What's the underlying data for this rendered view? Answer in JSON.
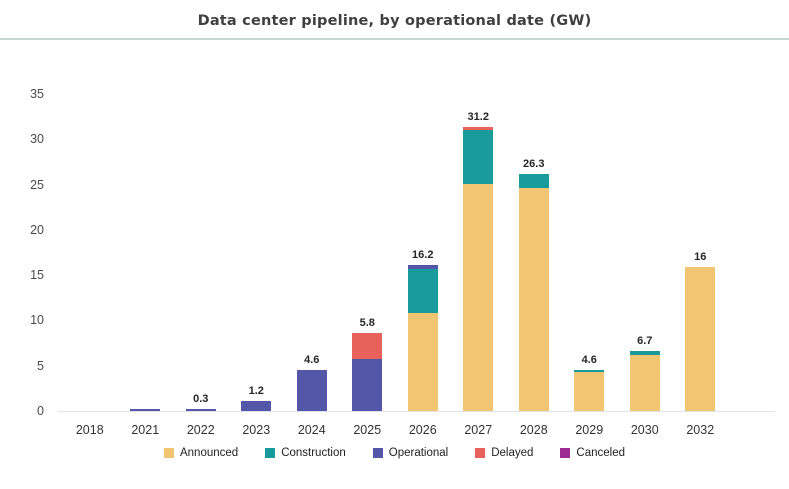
{
  "title": "Data center pipeline, by operational date (GW)",
  "colors": {
    "announced": "#f2c572",
    "construction": "#1a9b9b",
    "operational": "#5457a8",
    "delayed": "#e8625c",
    "canceled": "#9e2b91",
    "title_text": "#404040",
    "axis_text": "#4a4a4a",
    "axis_line": "#dfe3e5",
    "title_rule": "#c5d8d1"
  },
  "chart_data": {
    "type": "bar",
    "stacked": true,
    "title": "Data center pipeline, by operational date (GW)",
    "xlabel": "",
    "ylabel": "",
    "ylim": [
      0,
      35
    ],
    "yticks": [
      0,
      5,
      10,
      15,
      20,
      25,
      30,
      35
    ],
    "grid": false,
    "legend_position": "bottom",
    "categories": [
      "2018",
      "2021",
      "2022",
      "2023",
      "2024",
      "2025",
      "2026",
      "2027",
      "2028",
      "2029",
      "2030",
      "2032"
    ],
    "series": [
      {
        "name": "Announced",
        "color": "#f2c572",
        "values": [
          0,
          0,
          0,
          0,
          0,
          0,
          10.9,
          25.2,
          24.7,
          4.4,
          6.3,
          16
        ]
      },
      {
        "name": "Construction",
        "color": "#1a9b9b",
        "values": [
          0,
          0,
          0,
          0,
          0,
          0,
          4.9,
          6.0,
          1.6,
          0.2,
          0.4,
          0
        ]
      },
      {
        "name": "Operational",
        "color": "#5457a8",
        "values": [
          0,
          0.3,
          0.3,
          1.2,
          4.6,
          5.8,
          0.4,
          0,
          0,
          0,
          0,
          0
        ]
      },
      {
        "name": "Delayed",
        "color": "#e8625c",
        "values": [
          0,
          0,
          0,
          0,
          0,
          2.9,
          0,
          0.3,
          0,
          0,
          0,
          0
        ]
      },
      {
        "name": "Canceled",
        "color": "#9e2b91",
        "values": [
          0,
          0,
          0,
          0,
          0,
          0,
          0,
          0,
          0,
          0,
          0,
          0
        ]
      }
    ],
    "bar_labels": [
      "",
      "",
      "0.3",
      "1.2",
      "4.6",
      "5.8",
      "16.2",
      "31.2",
      "26.3",
      "4.6",
      "6.7",
      "16"
    ]
  },
  "legend": {
    "items": [
      {
        "label": "Announced",
        "color": "#f2c572"
      },
      {
        "label": "Construction",
        "color": "#1a9b9b"
      },
      {
        "label": "Operational",
        "color": "#5457a8"
      },
      {
        "label": "Delayed",
        "color": "#e8625c"
      },
      {
        "label": "Canceled",
        "color": "#9e2b91"
      }
    ]
  }
}
